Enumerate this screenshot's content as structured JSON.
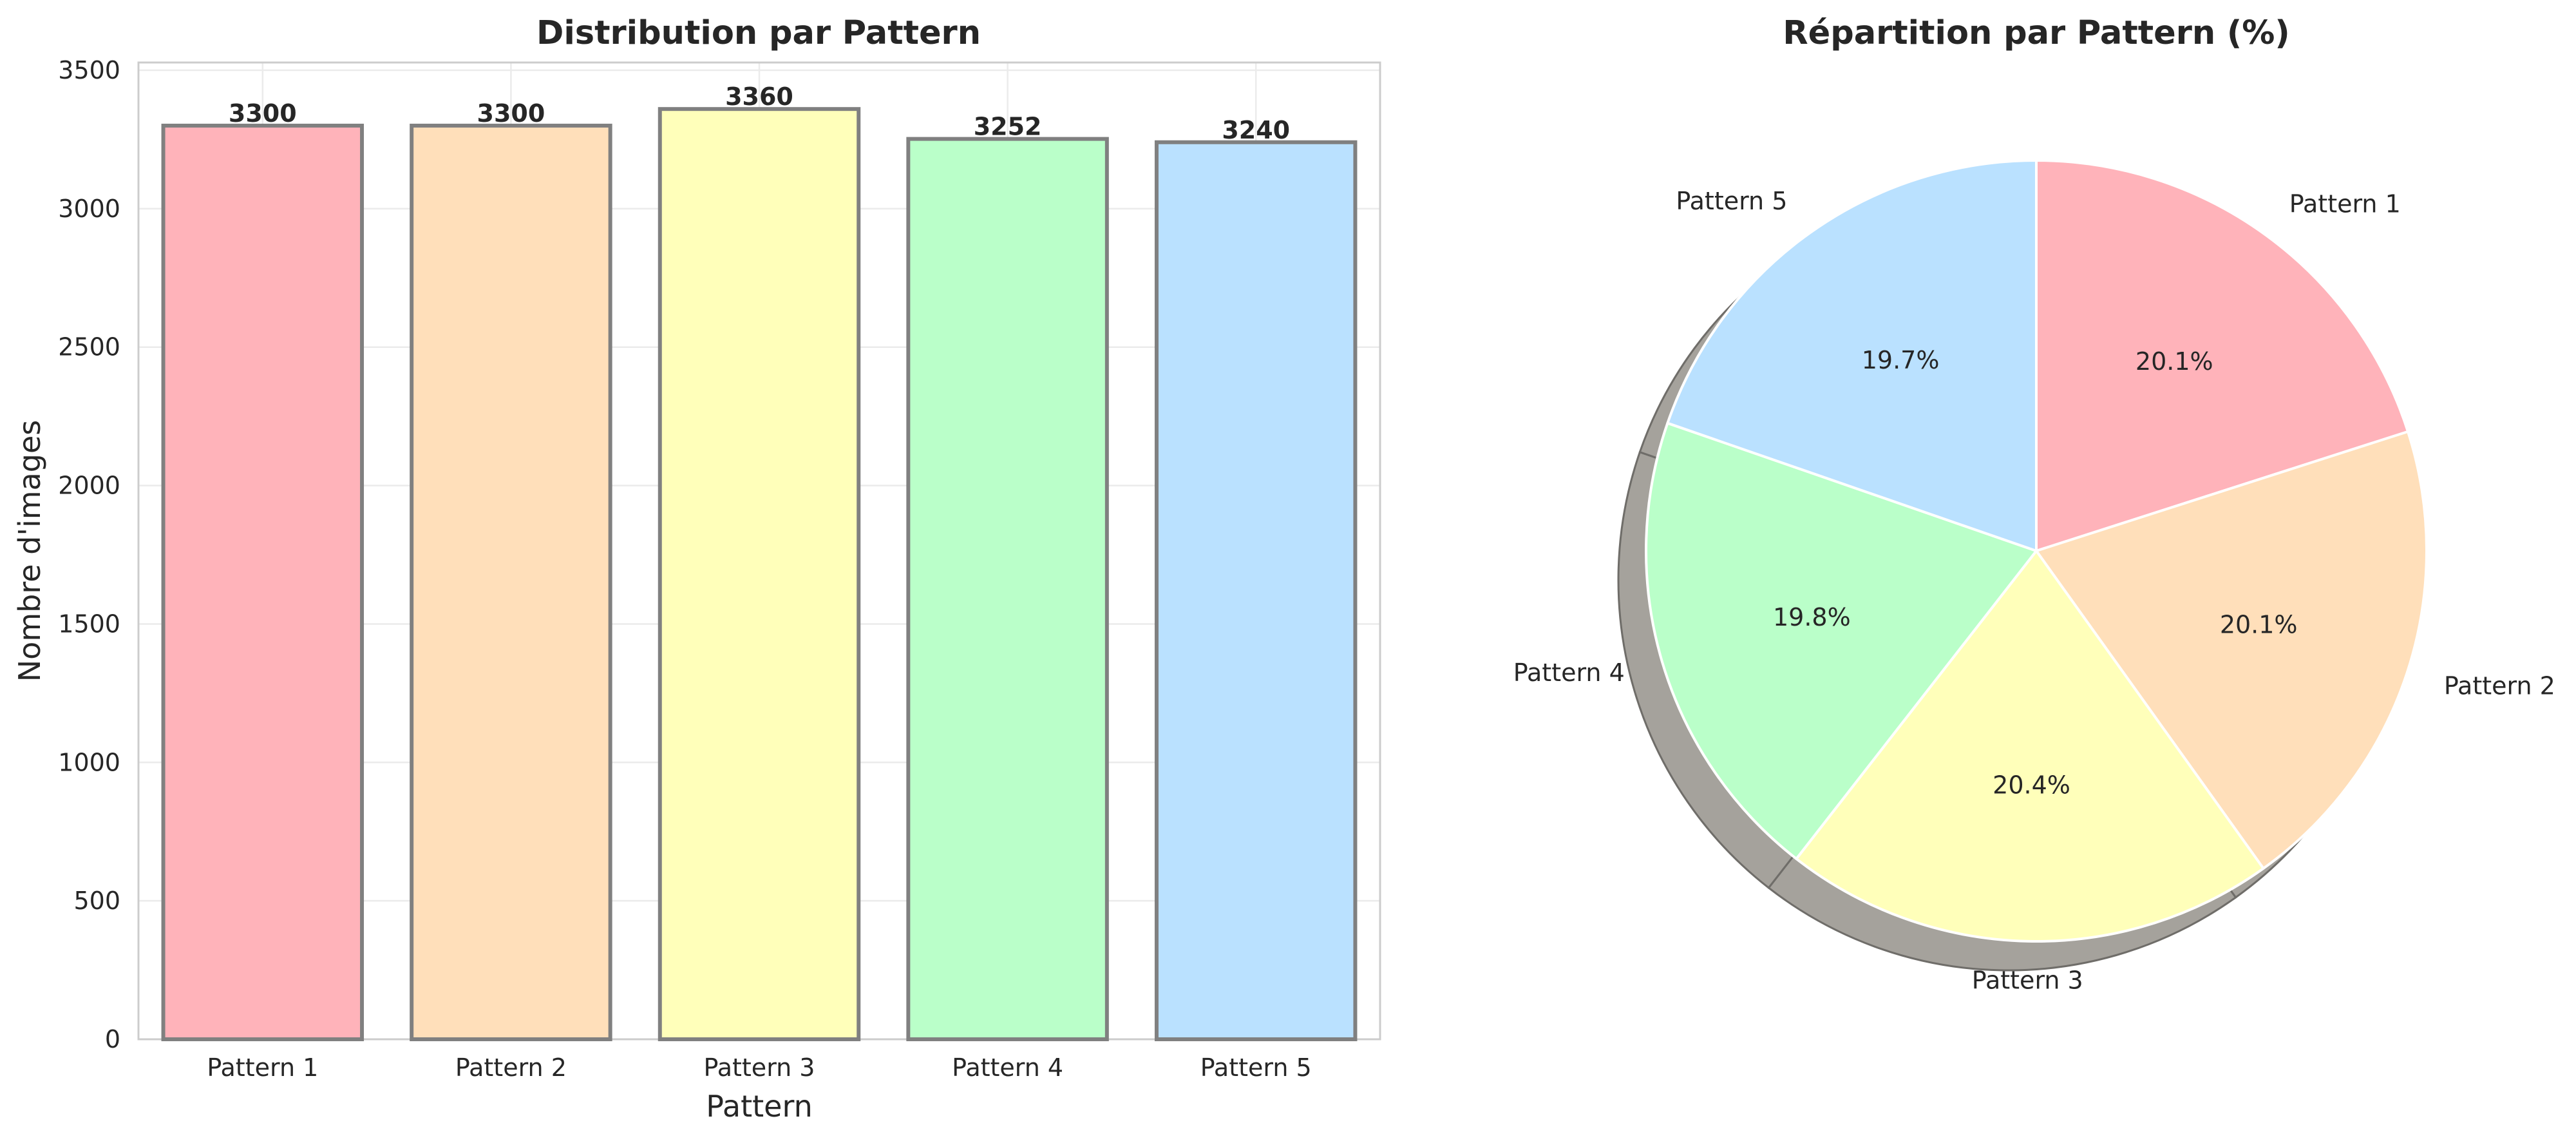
{
  "chart_data": [
    {
      "type": "bar",
      "title": "Distribution par Pattern",
      "xlabel": "Pattern",
      "ylabel": "Nombre d'images",
      "categories": [
        "Pattern 1",
        "Pattern 2",
        "Pattern 3",
        "Pattern 4",
        "Pattern 5"
      ],
      "values": [
        3300,
        3300,
        3360,
        3252,
        3240
      ],
      "data_labels": [
        "3300",
        "3300",
        "3360",
        "3252",
        "3240"
      ],
      "ylim": [
        0,
        3528
      ],
      "yticks": [
        0,
        500,
        1000,
        1500,
        2000,
        2500,
        3000,
        3500
      ],
      "ytick_labels": [
        "0",
        "500",
        "1000",
        "1500",
        "2000",
        "2500",
        "3000",
        "3500"
      ],
      "grid": true,
      "colors": [
        "#ffb3ba",
        "#ffdfba",
        "#ffffba",
        "#baffc9",
        "#bae1ff"
      ],
      "edge_color": "#808080"
    },
    {
      "type": "pie",
      "title": "Répartition par Pattern (%)",
      "labels": [
        "Pattern 1",
        "Pattern 2",
        "Pattern 3",
        "Pattern 4",
        "Pattern 5"
      ],
      "values": [
        3300,
        3300,
        3360,
        3252,
        3240
      ],
      "percent_labels": [
        "20.1%",
        "20.1%",
        "20.4%",
        "19.8%",
        "19.7%"
      ],
      "colors": [
        "#ffb3ba",
        "#ffdfba",
        "#ffffba",
        "#baffc9",
        "#bae1ff"
      ],
      "start_angle_deg": 90,
      "shadow": true
    }
  ]
}
